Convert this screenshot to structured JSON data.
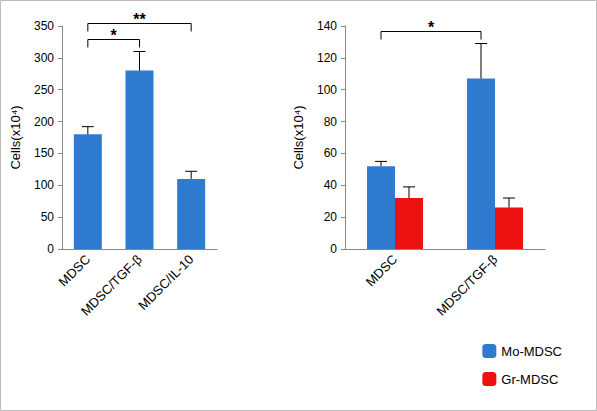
{
  "chart_data": [
    {
      "type": "bar",
      "y_label": "Cells(x10⁴)",
      "categories": [
        "MDSC",
        "MDSC/TGF-β",
        "MDSC/IL-10"
      ],
      "values": [
        180,
        280,
        110
      ],
      "errors": [
        12,
        30,
        12
      ],
      "color": "#2e7bcf",
      "ylim": [
        0,
        350
      ],
      "yticks": [
        0,
        50,
        100,
        150,
        200,
        250,
        300,
        350
      ],
      "grid": false,
      "annotations": [
        {
          "text": "*",
          "from": "MDSC",
          "to": "MDSC/TGF-β"
        },
        {
          "text": "**",
          "from": "MDSC",
          "to": "MDSC/IL-10"
        }
      ]
    },
    {
      "type": "bar",
      "y_label": "Cells(x10⁴)",
      "categories": [
        "MDSC",
        "MDSC/TGF-β"
      ],
      "series": [
        {
          "name": "Mo-MDSC",
          "color": "#2e7bcf",
          "values": [
            52,
            107
          ],
          "errors": [
            3,
            22
          ]
        },
        {
          "name": "Gr-MDSC",
          "color": "#ee1111",
          "values": [
            32,
            26
          ],
          "errors": [
            7,
            6
          ]
        }
      ],
      "ylim": [
        0,
        140
      ],
      "yticks": [
        0,
        20,
        40,
        60,
        80,
        100,
        120,
        140
      ],
      "grid": false,
      "legend": "lower right",
      "annotations": [
        {
          "text": "*",
          "from": "MDSC",
          "to": "MDSC/TGF-β",
          "series": "Mo-MDSC"
        }
      ]
    }
  ]
}
